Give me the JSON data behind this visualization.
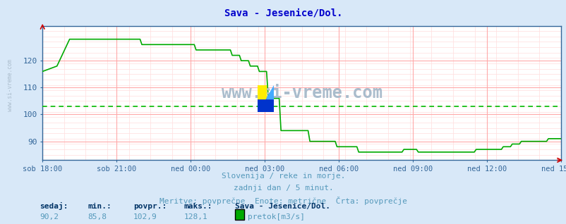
{
  "title": "Sava - Jesenice/Dol.",
  "bg_color": "#d8e8f8",
  "plot_bg_color": "#ffffff",
  "line_color": "#00aa00",
  "avg_line_color": "#00bb00",
  "avg_value": 102.9,
  "tick_color": "#336699",
  "grid_color_major": "#ffaaaa",
  "grid_color_minor": "#ffdddd",
  "x_labels": [
    "sob 18:00",
    "sob 21:00",
    "ned 00:00",
    "ned 03:00",
    "ned 06:00",
    "ned 09:00",
    "ned 12:00",
    "ned 15:00"
  ],
  "y_ticks": [
    90,
    100,
    110,
    120
  ],
  "ylim": [
    83,
    133
  ],
  "xlim": [
    0,
    287
  ],
  "title_color": "#0000cc",
  "title_fontsize": 10,
  "subtitle1": "Slovenija / reke in morje.",
  "subtitle2": "zadnji dan / 5 minut.",
  "subtitle3": "Meritve: povprečne  Enote: metrične  Črta: povprečje",
  "subtitle_color": "#5599bb",
  "footer_label_color": "#003366",
  "footer_value_color": "#5599bb",
  "footer_labels": [
    "sedaj:",
    "min.:",
    "povpr.:",
    "maks.:"
  ],
  "footer_values": [
    "90,2",
    "85,8",
    "102,9",
    "128,1"
  ],
  "footer_station": "Sava - Jesenice/Dol.",
  "footer_legend": "pretok[m3/s]",
  "footer_legend_color": "#00aa00",
  "watermark": "www.si-vreme.com",
  "watermark_color": "#aabccc",
  "spine_color": "#336699",
  "arrow_color": "#cc0000"
}
